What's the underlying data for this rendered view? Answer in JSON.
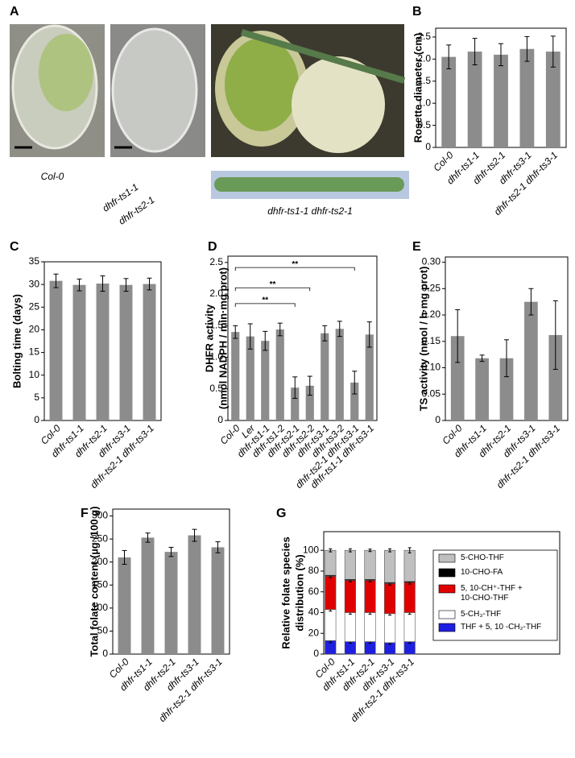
{
  "figure": {
    "panel_a": {
      "letter": "A",
      "labels": [
        "Col-0",
        "dhfr-ts1-1",
        "dhfr-ts2-1"
      ],
      "silique_label": "dhfr-ts1-1 dhfr-ts2-1"
    }
  },
  "chart_data": [
    {
      "type": "bar",
      "panel": "B",
      "ylabel": "Rosette diameter (cm)",
      "color": "#8c8c8c",
      "categories": [
        "Col-0",
        "dhfr-ts1-1",
        "dhfr-ts2-1",
        "dhfr-ts3-1",
        "dhfr-ts2-1 dhfr-ts3-1"
      ],
      "values": [
        2.05,
        2.17,
        2.1,
        2.23,
        2.17
      ],
      "errors": [
        0.27,
        0.3,
        0.25,
        0.28,
        0.35
      ],
      "ylim": [
        0,
        2.7
      ],
      "yticks": [
        0,
        0.5,
        {
          "value": 1,
          "label": "1.0"
        },
        1.5,
        {
          "value": 2,
          "label": "2.0"
        },
        2.5
      ]
    },
    {
      "type": "bar",
      "panel": "C",
      "ylabel": "Bolting time (days)",
      "color": "#8c8c8c",
      "categories": [
        "Col-0",
        "dhfr-ts1-1",
        "dhfr-ts2-1",
        "dhfr-ts3-1",
        "dhfr-ts2-1 dhfr-ts3-1"
      ],
      "values": [
        30.8,
        29.9,
        30.2,
        29.9,
        30.1
      ],
      "errors": [
        1.5,
        1.3,
        1.7,
        1.4,
        1.3
      ],
      "ylim": [
        0,
        35
      ],
      "yticks": [
        0,
        5,
        10,
        15,
        20,
        25,
        30,
        35
      ]
    },
    {
      "type": "bar",
      "panel": "D",
      "ylabel": [
        "DHFR activity",
        "(nmol NADPH / min·mg prot)"
      ],
      "color": "#8c8c8c",
      "categories": [
        "Col-0",
        "Ler",
        "dhfr-ts1-1",
        "dhfr-ts1-2",
        "dhfr-ts2-1",
        "dhfr-ts2-2",
        "dhfr-ts3-1",
        "dhfr-ts3-2",
        "dhfr-ts2-1 dhfr-ts3-1",
        "dhfr-ts1-1 dhfr-ts3-1"
      ],
      "values": [
        1.4,
        1.33,
        1.26,
        1.44,
        0.52,
        0.55,
        1.38,
        1.45,
        0.6,
        1.36
      ],
      "errors": [
        0.1,
        0.2,
        0.15,
        0.1,
        0.17,
        0.15,
        0.12,
        0.12,
        0.18,
        0.2
      ],
      "ylim": [
        0,
        2.6
      ],
      "yticks": [
        0,
        0.5,
        {
          "value": 1,
          "label": "1.0"
        },
        1.5,
        {
          "value": 2,
          "label": "2.0"
        },
        2.5
      ],
      "annotations": [
        {
          "label": "**",
          "from": 0,
          "to": 4,
          "y": 1.85
        },
        {
          "label": "**",
          "from": 0,
          "to": 5,
          "y": 2.1
        },
        {
          "label": "**",
          "from": 0,
          "to": 8,
          "y": 2.42
        }
      ]
    },
    {
      "type": "bar",
      "panel": "E",
      "ylabel": "TS activity (nmol / h·mg prot)",
      "color": "#8c8c8c",
      "categories": [
        "Col-0",
        "dhfr-ts1-1",
        "dhfr-ts2-1",
        "dhfr-ts3-1",
        "dhfr-ts2-1 dhfr-ts3-1"
      ],
      "values": [
        0.16,
        0.118,
        0.118,
        0.225,
        0.162
      ],
      "errors": [
        0.05,
        0.006,
        0.035,
        0.025,
        0.065
      ],
      "ylim": [
        0,
        0.31
      ],
      "yticks": [
        0,
        0.05,
        {
          "value": 0.1,
          "label": "0.10"
        },
        0.15,
        {
          "value": 0.2,
          "label": "0.20"
        },
        0.25,
        {
          "value": 0.3,
          "label": "0.30"
        }
      ]
    },
    {
      "type": "bar",
      "panel": "F",
      "ylabel": "Total folate content (µg /100 g)",
      "color": "#8c8c8c",
      "categories": [
        "Col-0",
        "dhfr-ts1-1",
        "dhfr-ts2-1",
        "dhfr-ts3-1",
        "dhfr-ts2-1 dhfr-ts3-1"
      ],
      "values": [
        210,
        253,
        222,
        258,
        232
      ],
      "errors": [
        15,
        10,
        10,
        13,
        12
      ],
      "ylim": [
        0,
        315
      ],
      "yticks": [
        0,
        50,
        100,
        150,
        200,
        250,
        300
      ]
    },
    {
      "type": "stacked_bar",
      "panel": "G",
      "ylabel": [
        "Relative folate species",
        "distribution (%)"
      ],
      "categories": [
        "Col-0",
        "dhfr-ts1-1",
        "dhfr-ts2-1",
        "dhfr-ts3-1",
        "dhfr-ts2-1 dhfr-ts3-1"
      ],
      "series": [
        {
          "name": "THF + 5, 10 -CH₂-THF",
          "color": "#1f1fe0",
          "values": [
            13,
            12,
            12,
            11,
            12
          ],
          "errors": [
            2,
            1.5,
            1.5,
            1.5,
            1.5
          ]
        },
        {
          "name": "5-CH₃-THF",
          "color": "#ffffff",
          "values": [
            30,
            28,
            28,
            28,
            28
          ],
          "errors": [
            1.5,
            1.5,
            1.5,
            1.5,
            1.5
          ]
        },
        {
          "name": "5, 10-CH⁺-THF + 10-CHO-THF",
          "color": "#e00000",
          "values": [
            32,
            31,
            31,
            29,
            29
          ],
          "errors": [
            1.5,
            1.5,
            1.5,
            1.5,
            1.5
          ]
        },
        {
          "name": "10-CHO-FA",
          "color": "#000000",
          "values": [
            1,
            1,
            1,
            1,
            1
          ],
          "errors": [
            0.5,
            0.5,
            0.5,
            0.5,
            0.5
          ]
        },
        {
          "name": "5-CHO-THF",
          "color": "#bfbfbf",
          "values": [
            24,
            28,
            28,
            31,
            30
          ],
          "errors": [
            1.5,
            1.5,
            1.2,
            1.5,
            2.5
          ]
        }
      ],
      "ylim": [
        0,
        118
      ],
      "yticks": [
        0,
        20,
        40,
        60,
        80,
        100
      ]
    }
  ]
}
